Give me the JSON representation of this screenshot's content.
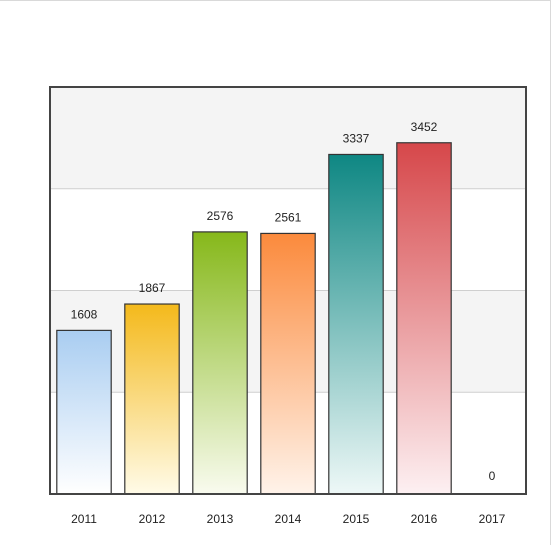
{
  "chart_data": {
    "type": "bar",
    "categories": [
      "2011",
      "2012",
      "2013",
      "2014",
      "2015",
      "2016",
      "2017"
    ],
    "values": [
      1608,
      1867,
      2576,
      2561,
      3337,
      3452,
      0
    ],
    "data_labels": [
      "1608",
      "1867",
      "2576",
      "2561",
      "3337",
      "3452",
      "0"
    ],
    "ylim": [
      0,
      4000
    ],
    "yticks": [
      0,
      1000,
      2000,
      3000,
      4000
    ],
    "title": "",
    "xlabel": "",
    "ylabel": "",
    "grid": true,
    "legend": "none",
    "colors": [
      [
        "#a9cdf1",
        "#ffffff"
      ],
      [
        "#f4b91b",
        "#fffbe8"
      ],
      [
        "#86b81a",
        "#f9fbef"
      ],
      [
        "#fb8a3c",
        "#fff3ea"
      ],
      [
        "#0e8783",
        "#eef8f7"
      ],
      [
        "#d6474a",
        "#fdf0f2"
      ],
      [
        "#cccccc",
        "#ffffff"
      ]
    ]
  }
}
